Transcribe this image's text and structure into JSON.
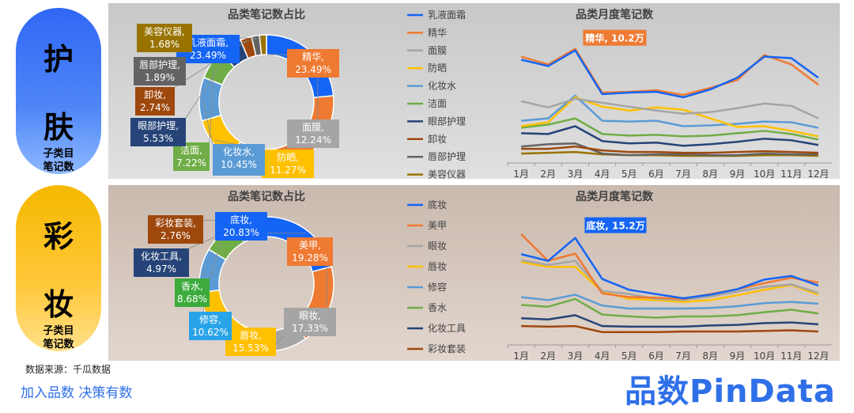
{
  "sections": [
    {
      "id": "skin",
      "badge": {
        "line1": "护",
        "line2": "肤",
        "sub1": "子类目",
        "sub2": "笔记数"
      },
      "colors": [
        "#1464f5",
        "#ef7a32",
        "#a5a5a5",
        "#ffc000",
        "#5b9bd5",
        "#70ad47",
        "#264478",
        "#9e480e",
        "#636363",
        "#997300"
      ],
      "chart_data": [
        {
          "type": "pie",
          "title": "品类笔记数占比",
          "categories": [
            "乳液面霜",
            "精华",
            "面膜",
            "防晒",
            "化妆水",
            "洁面",
            "眼部护理",
            "卸妆",
            "唇部护理",
            "美容仪器"
          ],
          "values": [
            23.49,
            23.49,
            12.24,
            11.27,
            10.45,
            7.22,
            5.53,
            2.74,
            1.89,
            1.68
          ],
          "value_labels": [
            "23.49%",
            "23.49%",
            "12.24%",
            "11.27%",
            "10.45%",
            "7.22%",
            "5.53%",
            "2.74%",
            "1.89%",
            "1.68%"
          ]
        },
        {
          "type": "line",
          "title": "品类月度笔记数",
          "x": [
            "1月",
            "2月",
            "3月",
            "4月",
            "5月",
            "6月",
            "7月",
            "8月",
            "9月",
            "10月",
            "11月",
            "12月"
          ],
          "series": [
            {
              "name": "乳液面霜",
              "values": [
                8.8,
                8.0,
                10.0,
                4.4,
                4.6,
                4.7,
                4.0,
                5.0,
                6.5,
                9.2,
                9.0,
                6.5
              ]
            },
            {
              "name": "精华",
              "values": [
                9.2,
                8.2,
                10.2,
                4.6,
                4.7,
                4.9,
                4.3,
                5.2,
                6.2,
                9.4,
                8.2,
                5.6
              ]
            },
            {
              "name": "面膜",
              "values": [
                3.5,
                2.7,
                3.8,
                3.3,
                2.8,
                2.3,
                1.9,
                2.1,
                2.6,
                3.2,
                2.9,
                1.3
              ]
            },
            {
              "name": "防晒",
              "values": [
                0.3,
                0.8,
                4.0,
                2.8,
                2.3,
                2.7,
                2.4,
                1.3,
                0.2,
                0.3,
                -0.3,
                -1.0
              ]
            },
            {
              "name": "化妆水",
              "values": [
                1.0,
                1.3,
                4.2,
                1.0,
                0.9,
                1.0,
                0.3,
                0.4,
                0.6,
                0.9,
                0.8,
                0.1
              ]
            },
            {
              "name": "洁面",
              "values": [
                0.1,
                0.5,
                1.3,
                -0.7,
                -0.9,
                -0.8,
                -1.0,
                -0.9,
                -0.6,
                -0.3,
                -0.7,
                -1.4
              ]
            },
            {
              "name": "眼部护理",
              "values": [
                -0.6,
                -0.7,
                0.3,
                -1.6,
                -1.9,
                -1.8,
                -2.2,
                -2.0,
                -1.7,
                -1.3,
                -1.5,
                -2.1
              ]
            },
            {
              "name": "卸妆",
              "values": [
                -2.6,
                -2.6,
                -2.3,
                -2.8,
                -3.0,
                -3.0,
                -3.1,
                -3.1,
                -3.0,
                -2.9,
                -3.0,
                -3.1
              ]
            },
            {
              "name": "唇部护理",
              "values": [
                -2.3,
                -2.0,
                -1.9,
                -3.2,
                -3.4,
                -3.3,
                -3.3,
                -3.4,
                -3.4,
                -3.2,
                -3.3,
                -3.3
              ]
            },
            {
              "name": "美容仪器",
              "values": [
                -3.2,
                -3.1,
                -3.0,
                -3.3,
                -3.4,
                -3.4,
                -3.5,
                -3.5,
                -3.5,
                -3.4,
                -3.4,
                -3.5
              ]
            }
          ],
          "annotation": {
            "text": "精华, 10.2万",
            "series_index": 1,
            "x_index": 2
          }
        }
      ]
    },
    {
      "id": "makeup",
      "badge": {
        "line1": "彩",
        "line2": "妆",
        "sub1": "子类目",
        "sub2": "笔记数"
      },
      "colors": [
        "#1464f5",
        "#ef7a32",
        "#a5a5a5",
        "#ffc000",
        "#5b9bd5",
        "#70ad47",
        "#264478",
        "#9e480e"
      ],
      "pie_label_colors": [
        "#1464f5",
        "#ef7a32",
        "#a5a5a5",
        "#ffc000",
        "#29a3e8",
        "#3cab3c",
        "#264478",
        "#9e480e"
      ],
      "chart_data": [
        {
          "type": "pie",
          "title": "品类笔记数占比",
          "categories": [
            "底妆",
            "美甲",
            "眼妆",
            "唇妆",
            "修容",
            "香水",
            "化妆工具",
            "彩妆套装"
          ],
          "values": [
            20.83,
            19.28,
            17.33,
            15.53,
            10.62,
            8.68,
            4.97,
            2.76
          ],
          "value_labels": [
            "20.83%",
            "19.28%",
            "17.33%",
            "15.53%",
            "10.62%",
            "8.68%",
            "4.97%",
            "2.76%"
          ]
        },
        {
          "type": "line",
          "title": "品类月度笔记数",
          "x": [
            "1月",
            "2月",
            "3月",
            "4月",
            "5月",
            "6月",
            "7月",
            "8月",
            "9月",
            "10月",
            "11月",
            "12月"
          ],
          "series": [
            {
              "name": "底妆",
              "values": [
                12.5,
                11.4,
                15.2,
                8.4,
                6.6,
                5.9,
                5.2,
                5.8,
                6.7,
                8.3,
                8.9,
                7.3
              ]
            },
            {
              "name": "美甲",
              "values": [
                15.8,
                11.4,
                12.6,
                6.0,
                5.4,
                5.3,
                5.1,
                5.9,
                6.7,
                7.7,
                8.6,
                7.8
              ]
            },
            {
              "name": "眼妆",
              "values": [
                11.5,
                10.7,
                11.4,
                6.4,
                5.9,
                5.1,
                4.9,
                5.5,
                6.3,
                7.1,
                7.5,
                6.1
              ]
            },
            {
              "name": "唇妆",
              "values": [
                11.2,
                10.4,
                10.4,
                6.3,
                5.1,
                4.9,
                4.6,
                4.9,
                5.7,
                6.6,
                7.4,
                5.8
              ]
            },
            {
              "name": "修容",
              "values": [
                5.4,
                4.9,
                5.8,
                4.0,
                3.5,
                3.5,
                3.5,
                3.6,
                3.9,
                4.4,
                4.6,
                4.3
              ]
            },
            {
              "name": "香水",
              "values": [
                4.1,
                3.8,
                5.1,
                2.5,
                2.2,
                2.0,
                2.2,
                2.2,
                2.4,
                2.9,
                3.3,
                2.7
              ]
            },
            {
              "name": "化妆工具",
              "values": [
                1.9,
                1.7,
                2.4,
                0.6,
                0.5,
                0.5,
                0.5,
                0.7,
                0.8,
                1.1,
                1.2,
                0.9
              ]
            },
            {
              "name": "彩妆套装",
              "values": [
                0.6,
                0.5,
                0.6,
                -0.4,
                -0.4,
                -0.4,
                -0.3,
                -0.3,
                -0.3,
                -0.2,
                -0.1,
                -0.3
              ]
            }
          ],
          "annotation": {
            "text": "底妆, 15.2万",
            "series_index": 0,
            "x_index": 2
          }
        }
      ]
    }
  ],
  "footer": {
    "source": "数据来源：千瓜数据",
    "slogan": "加入品数 决策有数",
    "logo": "品数PinData"
  }
}
